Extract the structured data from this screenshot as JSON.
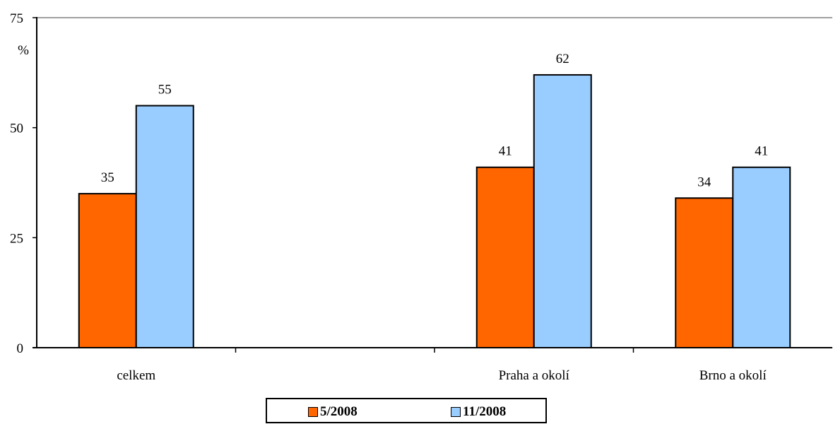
{
  "chart_data": {
    "type": "bar",
    "categories": [
      "celkem",
      "",
      "Praha a okolí",
      "Brno a okolí"
    ],
    "series": [
      {
        "name": "5/2008",
        "color": "#FF6600",
        "values": [
          35,
          null,
          41,
          34
        ]
      },
      {
        "name": "11/2008",
        "color": "#99CCFF",
        "values": [
          55,
          null,
          62,
          41
        ]
      }
    ],
    "title": "",
    "xlabel": "",
    "ylabel": "%",
    "ylim": [
      0,
      75
    ],
    "yticks": [
      "0",
      "25",
      "50",
      "75"
    ],
    "grid": false,
    "legend_position": "bottom"
  }
}
